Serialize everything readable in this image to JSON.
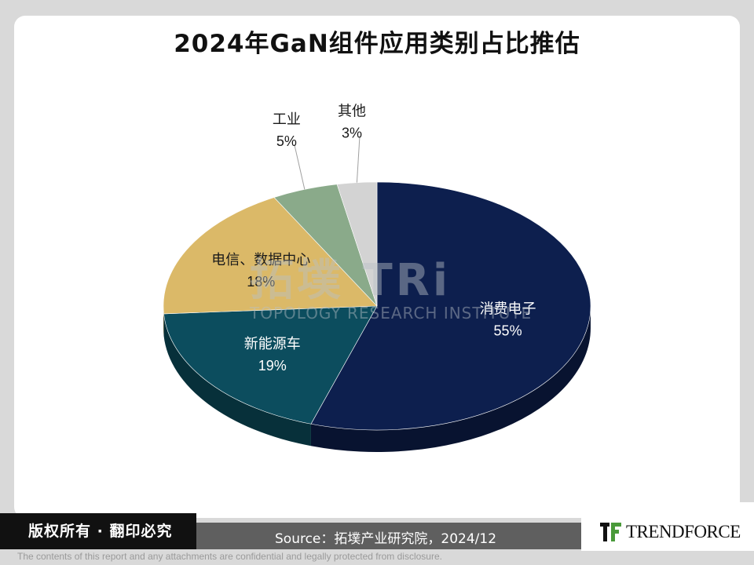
{
  "title": "2024年GaN组件应用类别占比推估",
  "chart_data": {
    "type": "pie",
    "title": "2024年GaN组件应用类别占比推估",
    "slices": [
      {
        "label": "消费电子",
        "value": 55,
        "value_label": "55%",
        "color": "#0d1f4e"
      },
      {
        "label": "新能源车",
        "value": 19,
        "value_label": "19%",
        "color": "#0c4d5e"
      },
      {
        "label": "电信、数据中心",
        "value": 18,
        "value_label": "18%",
        "color": "#dbb968"
      },
      {
        "label": "工业",
        "value": 5,
        "value_label": "5%",
        "color": "#8aaa8a"
      },
      {
        "label": "其他",
        "value": 3,
        "value_label": "3%",
        "color": "#d3d3d3"
      }
    ],
    "style": "3d"
  },
  "watermark": {
    "main": "拓墣 TRi",
    "sub": "TOPOLOGY RESEARCH INSTITUTE"
  },
  "footer": {
    "copyright": "版权所有 · 翻印必究",
    "source": "Source：拓墣产业研究院，2024/12",
    "logo": "TRENDFORCE",
    "disclaimer": "The contents of this report and any attachments are confidential and legally protected from disclosure."
  }
}
